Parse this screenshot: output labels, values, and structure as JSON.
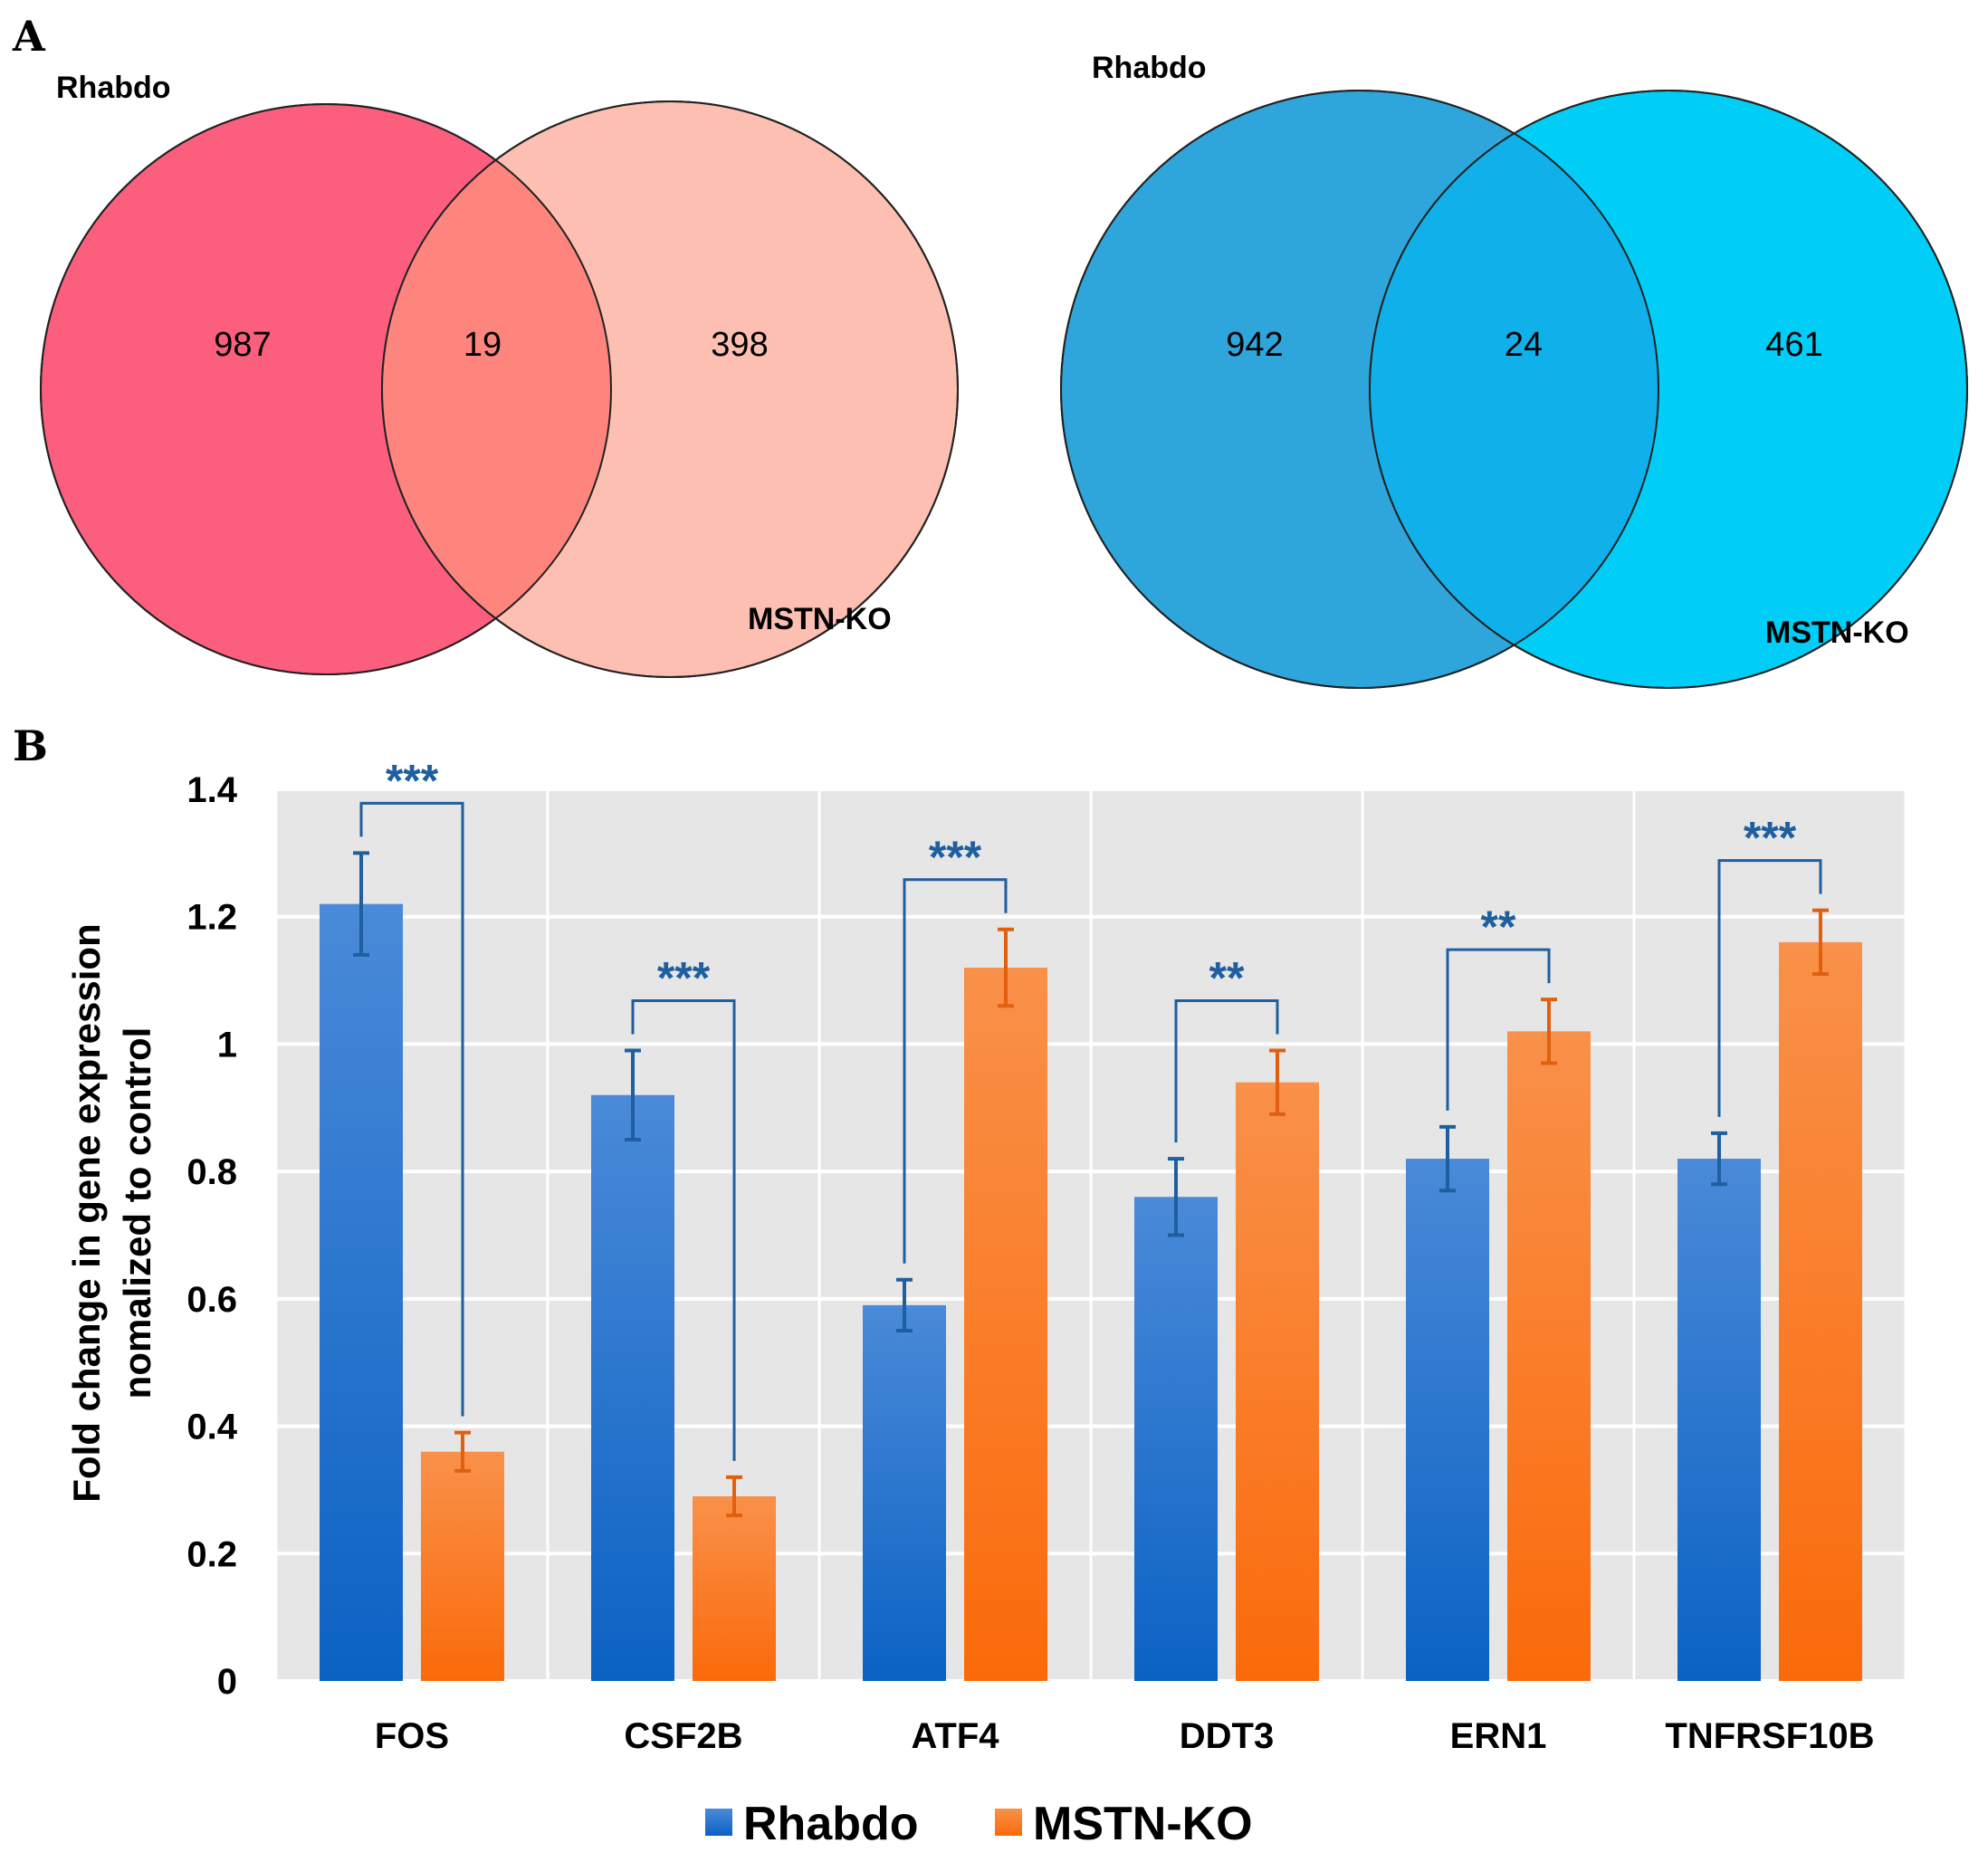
{
  "panel_a": {
    "label": "A",
    "venns": [
      {
        "set_a_label": "Rhabdo",
        "set_b_label": "MSTN-KO",
        "only_a": "987",
        "both": "19",
        "only_b": "398",
        "color_a": "#fc5f7d",
        "color_b": "#fcbfb1",
        "color_overlap": "#fd857e"
      },
      {
        "set_a_label": "Rhabdo",
        "set_b_label": "MSTN-KO",
        "only_a": "942",
        "both": "24",
        "only_b": "461",
        "color_a": "#2ea6dc",
        "color_b": "#00cef6",
        "color_overlap": "#10b0ea"
      }
    ]
  },
  "panel_b": {
    "label": "B"
  },
  "chart_data": {
    "type": "bar",
    "title": "",
    "xlabel": "",
    "ylabel_lines": [
      "Fold change in gene expression",
      "nomalized to control"
    ],
    "categories": [
      "FOS",
      "CSF2B",
      "ATF4",
      "DDT3",
      "ERN1",
      "TNFRSF10B"
    ],
    "series": [
      {
        "name": "Rhabdo",
        "values": [
          1.22,
          0.92,
          0.59,
          0.76,
          0.82,
          0.82
        ],
        "errors": [
          0.08,
          0.07,
          0.04,
          0.06,
          0.05,
          0.04
        ],
        "color_top": "#4a8ad8",
        "color_bottom": "#0b62c4",
        "error_color": "#1f5f9f"
      },
      {
        "name": "MSTN-KO",
        "values": [
          0.36,
          0.29,
          1.12,
          0.94,
          1.02,
          1.16
        ],
        "errors": [
          0.03,
          0.03,
          0.06,
          0.05,
          0.05,
          0.05
        ],
        "color_top": "#f9914a",
        "color_bottom": "#fa6a0a",
        "error_color": "#e06010"
      }
    ],
    "ylim": [
      0,
      1.4
    ],
    "yticks": [
      0,
      0.2,
      0.4,
      0.6,
      0.8,
      1,
      1.2,
      1.4
    ],
    "ytick_labels": [
      "0",
      "0.2",
      "0.4",
      "0.6",
      "0.8",
      "1",
      "1.2",
      "1.4"
    ],
    "significance": [
      "***",
      "***",
      "***",
      "**",
      "**",
      "***"
    ],
    "grid": true,
    "legend_position": "bottom-center",
    "plot_background": "#e6e6e6"
  }
}
